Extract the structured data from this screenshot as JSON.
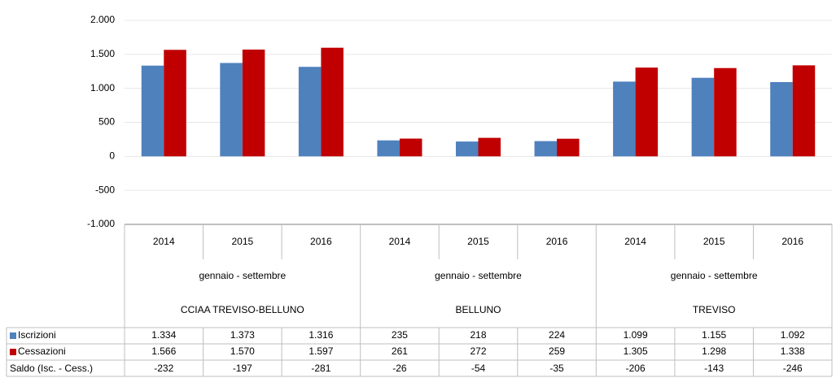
{
  "chart_data": {
    "type": "bar",
    "categories": [
      "2014",
      "2015",
      "2016",
      "2014",
      "2015",
      "2016",
      "2014",
      "2015",
      "2016"
    ],
    "period_labels": [
      "gennaio - settembre",
      "gennaio - settembre",
      "gennaio - settembre"
    ],
    "groups": [
      "CCIAA TREVISO-BELLUNO",
      "BELLUNO",
      "TREVISO"
    ],
    "series": [
      {
        "name": "Iscrizioni",
        "color": "#4f81bd",
        "values": [
          1334,
          1373,
          1316,
          235,
          218,
          224,
          1099,
          1155,
          1092
        ],
        "value_labels": [
          "1.334",
          "1.373",
          "1.316",
          "235",
          "218",
          "224",
          "1.099",
          "1.155",
          "1.092"
        ]
      },
      {
        "name": "Cessazioni",
        "color": "#c00000",
        "values": [
          1566,
          1570,
          1597,
          261,
          272,
          259,
          1305,
          1298,
          1338
        ],
        "value_labels": [
          "1.566",
          "1.570",
          "1.597",
          "261",
          "272",
          "259",
          "1.305",
          "1.298",
          "1.338"
        ]
      }
    ],
    "saldo": {
      "name": "Saldo (Isc. - Cess.)",
      "values": [
        -232,
        -197,
        -281,
        -26,
        -54,
        -35,
        -206,
        -143,
        -246
      ]
    },
    "ylim": [
      -1000,
      2000
    ],
    "yticks": [
      {
        "value": -1000,
        "label": "-1.000"
      },
      -500,
      0,
      500,
      {
        "value": 1000,
        "label": "1.000"
      },
      {
        "value": 1500,
        "label": "1.500"
      },
      {
        "value": 2000,
        "label": "2.000"
      }
    ],
    "grid": true
  }
}
